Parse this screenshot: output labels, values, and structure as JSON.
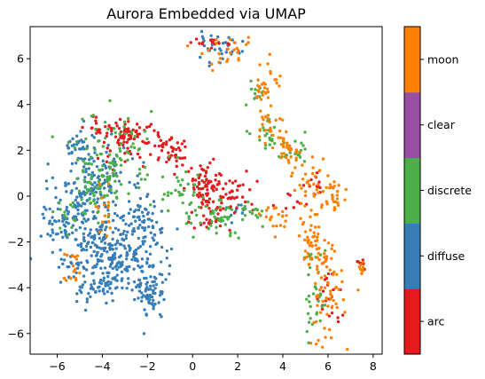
{
  "chart_data": {
    "type": "scatter",
    "title": "Aurora Embedded via UMAP",
    "xlabel": "",
    "ylabel": "",
    "xlim": [
      -7.2,
      8.4
    ],
    "ylim": [
      -6.9,
      7.4
    ],
    "xticks": [
      -6,
      -4,
      -2,
      0,
      2,
      4,
      6,
      8
    ],
    "yticks": [
      -6,
      -4,
      -2,
      0,
      2,
      4,
      6
    ],
    "xtick_labels": [
      "−6",
      "−4",
      "−2",
      "0",
      "2",
      "4",
      "6",
      "8"
    ],
    "ytick_labels": [
      "−6",
      "−4",
      "−2",
      "0",
      "2",
      "4",
      "6"
    ],
    "grid": false,
    "colorbar": {
      "position": "right",
      "labels": [
        "arc",
        "diffuse",
        "discrete",
        "clear",
        "moon"
      ]
    },
    "classes": [
      {
        "name": "arc",
        "color": "#e41a1c"
      },
      {
        "name": "diffuse",
        "color": "#377eb8"
      },
      {
        "name": "discrete",
        "color": "#4daf4a"
      },
      {
        "name": "clear",
        "color": "#984ea3"
      },
      {
        "name": "moon",
        "color": "#ff7f00"
      }
    ],
    "clusters": [
      {
        "class": "diffuse",
        "count": 330,
        "cx": -3.6,
        "cy": -2.6,
        "sx": 1.1,
        "sy": 1.0
      },
      {
        "class": "diffuse",
        "count": 140,
        "cx": -4.5,
        "cy": 0.6,
        "sx": 0.8,
        "sy": 0.9
      },
      {
        "class": "diffuse",
        "count": 70,
        "cx": -5.6,
        "cy": -1.0,
        "sx": 0.5,
        "sy": 0.6
      },
      {
        "class": "diffuse",
        "count": 60,
        "cx": -1.8,
        "cy": -4.2,
        "sx": 0.3,
        "sy": 0.6
      },
      {
        "class": "diffuse",
        "count": 50,
        "cx": -2.2,
        "cy": -1.4,
        "sx": 0.4,
        "sy": 0.7
      },
      {
        "class": "diffuse",
        "count": 35,
        "cx": 1.0,
        "cy": 6.4,
        "sx": 0.6,
        "sy": 0.3
      },
      {
        "class": "diffuse",
        "count": 25,
        "cx": -5.0,
        "cy": 2.2,
        "sx": 0.4,
        "sy": 0.3
      },
      {
        "class": "diffuse",
        "count": 12,
        "cx": -4.3,
        "cy": -4.0,
        "sx": 0.4,
        "sy": 0.3
      },
      {
        "class": "diffuse",
        "count": 10,
        "cx": 1.9,
        "cy": -0.6,
        "sx": 0.4,
        "sy": 0.3
      },
      {
        "class": "arc",
        "count": 70,
        "cx": -2.8,
        "cy": 2.7,
        "sx": 0.6,
        "sy": 0.25
      },
      {
        "class": "arc",
        "count": 45,
        "cx": -1.0,
        "cy": 2.0,
        "sx": 0.5,
        "sy": 0.4
      },
      {
        "class": "arc",
        "count": 60,
        "cx": 0.5,
        "cy": 0.6,
        "sx": 0.4,
        "sy": 0.5
      },
      {
        "class": "arc",
        "count": 45,
        "cx": 1.6,
        "cy": 0.2,
        "sx": 0.6,
        "sy": 0.5
      },
      {
        "class": "arc",
        "count": 30,
        "cx": 0.9,
        "cy": -0.8,
        "sx": 0.5,
        "sy": 0.4
      },
      {
        "class": "arc",
        "count": 15,
        "cx": -4.2,
        "cy": 3.0,
        "sx": 0.4,
        "sy": 0.2
      },
      {
        "class": "arc",
        "count": 15,
        "cx": 1.0,
        "cy": 6.7,
        "sx": 0.4,
        "sy": 0.1
      },
      {
        "class": "arc",
        "count": 20,
        "cx": 6.0,
        "cy": -4.5,
        "sx": 0.3,
        "sy": 0.7
      },
      {
        "class": "arc",
        "count": 8,
        "cx": 7.5,
        "cy": -3.0,
        "sx": 0.15,
        "sy": 0.15
      },
      {
        "class": "arc",
        "count": 10,
        "cx": 4.5,
        "cy": -0.2,
        "sx": 0.6,
        "sy": 0.5
      },
      {
        "class": "arc",
        "count": 10,
        "cx": 5.5,
        "cy": 0.5,
        "sx": 0.3,
        "sy": 0.4
      },
      {
        "class": "arc",
        "count": 12,
        "cx": -3.0,
        "cy": 1.6,
        "sx": 0.5,
        "sy": 0.3
      },
      {
        "class": "discrete",
        "count": 90,
        "cx": -3.5,
        "cy": 1.8,
        "sx": 0.9,
        "sy": 0.9
      },
      {
        "class": "discrete",
        "count": 50,
        "cx": -4.2,
        "cy": 0.3,
        "sx": 0.5,
        "sy": 0.6
      },
      {
        "class": "discrete",
        "count": 45,
        "cx": 1.5,
        "cy": -1.0,
        "sx": 0.7,
        "sy": 0.4
      },
      {
        "class": "discrete",
        "count": 35,
        "cx": -0.5,
        "cy": 0.0,
        "sx": 0.6,
        "sy": 0.6
      },
      {
        "class": "discrete",
        "count": 20,
        "cx": 3.3,
        "cy": 2.6,
        "sx": 0.3,
        "sy": 0.3
      },
      {
        "class": "discrete",
        "count": 20,
        "cx": 4.5,
        "cy": 1.8,
        "sx": 0.4,
        "sy": 0.3
      },
      {
        "class": "discrete",
        "count": 25,
        "cx": 5.4,
        "cy": -4.8,
        "sx": 0.3,
        "sy": 0.8
      },
      {
        "class": "discrete",
        "count": 15,
        "cx": -5.5,
        "cy": -0.8,
        "sx": 0.3,
        "sy": 0.4
      },
      {
        "class": "discrete",
        "count": 10,
        "cx": 2.8,
        "cy": 4.5,
        "sx": 0.2,
        "sy": 0.3
      },
      {
        "class": "discrete",
        "count": 10,
        "cx": 2.6,
        "cy": -0.7,
        "sx": 0.4,
        "sy": 0.2
      },
      {
        "class": "discrete",
        "count": 10,
        "cx": 5.3,
        "cy": -2.8,
        "sx": 0.3,
        "sy": 0.3
      },
      {
        "class": "moon",
        "count": 70,
        "cx": 5.9,
        "cy": -4.2,
        "sx": 0.4,
        "sy": 1.2
      },
      {
        "class": "moon",
        "count": 40,
        "cx": 5.4,
        "cy": -2.0,
        "sx": 0.4,
        "sy": 0.5
      },
      {
        "class": "moon",
        "count": 35,
        "cx": 5.2,
        "cy": 0.7,
        "sx": 0.4,
        "sy": 0.6
      },
      {
        "class": "moon",
        "count": 25,
        "cx": 6.3,
        "cy": 0.0,
        "sx": 0.3,
        "sy": 0.4
      },
      {
        "class": "moon",
        "count": 30,
        "cx": 3.3,
        "cy": 4.9,
        "sx": 0.3,
        "sy": 0.5
      },
      {
        "class": "moon",
        "count": 25,
        "cx": 3.5,
        "cy": 3.1,
        "sx": 0.3,
        "sy": 0.5
      },
      {
        "class": "moon",
        "count": 25,
        "cx": 4.2,
        "cy": 2.0,
        "sx": 0.3,
        "sy": 0.3
      },
      {
        "class": "moon",
        "count": 25,
        "cx": 1.6,
        "cy": 6.2,
        "sx": 0.6,
        "sy": 0.3
      },
      {
        "class": "moon",
        "count": 20,
        "cx": 3.8,
        "cy": -0.9,
        "sx": 0.4,
        "sy": 0.3
      },
      {
        "class": "moon",
        "count": 15,
        "cx": -3.9,
        "cy": -1.2,
        "sx": 0.2,
        "sy": 0.7
      },
      {
        "class": "moon",
        "count": 15,
        "cx": -5.3,
        "cy": -3.2,
        "sx": 0.2,
        "sy": 0.4
      },
      {
        "class": "moon",
        "count": 8,
        "cx": 7.5,
        "cy": -3.1,
        "sx": 0.1,
        "sy": 0.2
      }
    ]
  }
}
